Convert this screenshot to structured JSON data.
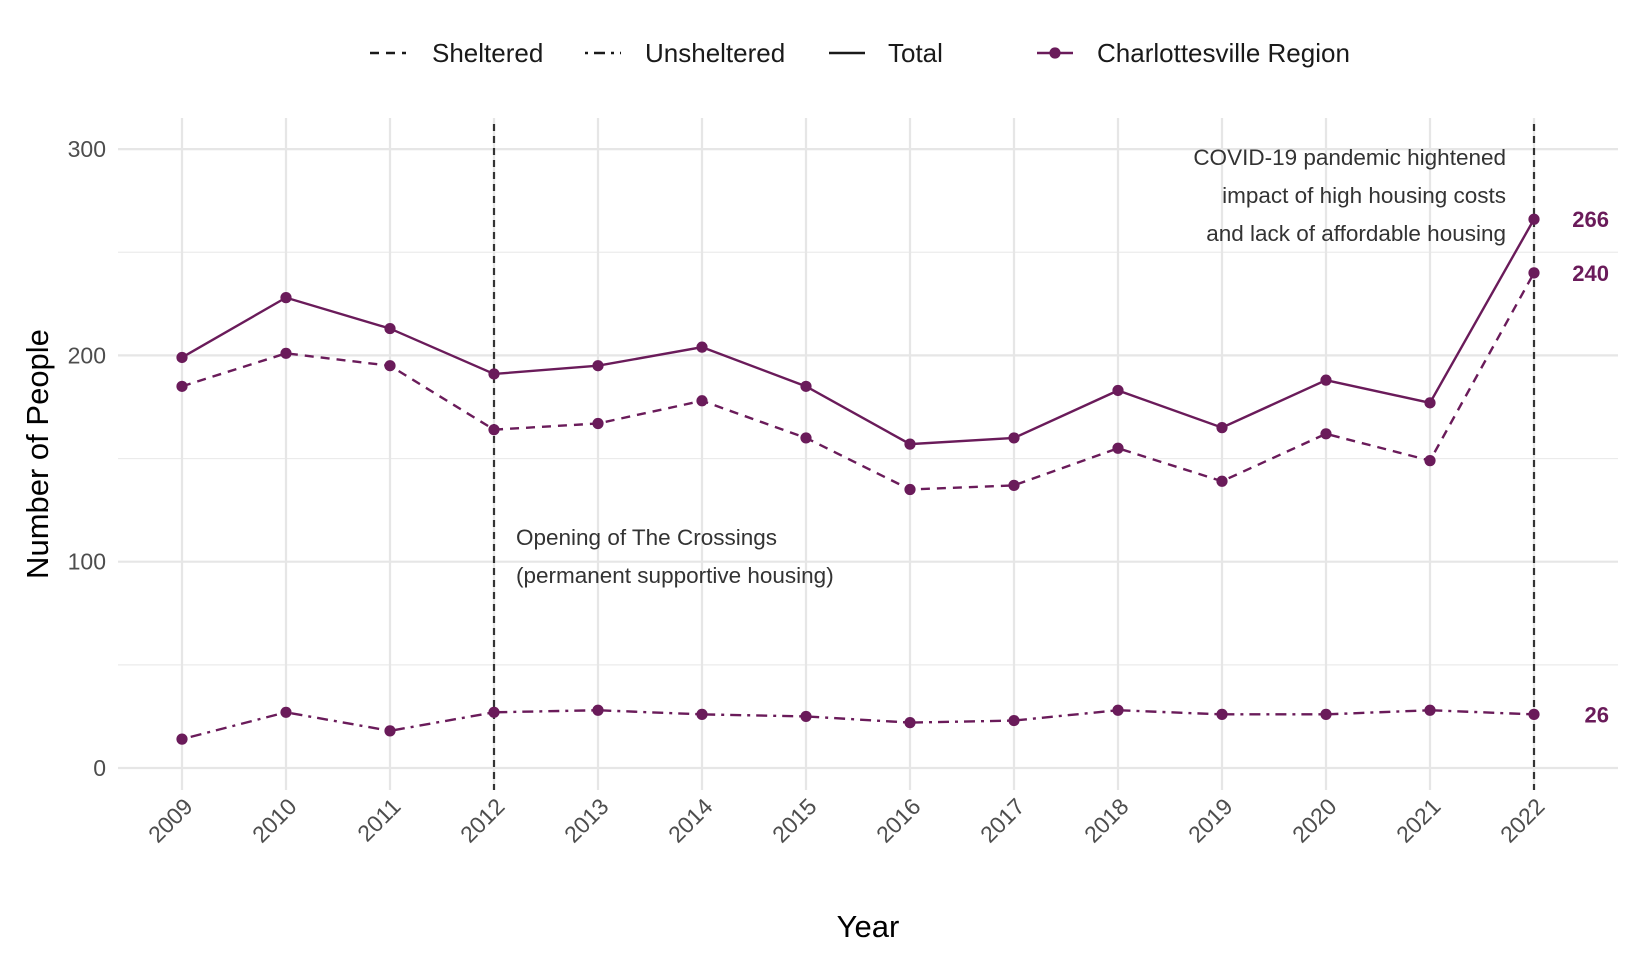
{
  "chart_data": {
    "type": "line",
    "title": "",
    "xlabel": "Year",
    "ylabel": "Number of People",
    "x": [
      "2009",
      "2010",
      "2011",
      "2012",
      "2013",
      "2014",
      "2015",
      "2016",
      "2017",
      "2018",
      "2019",
      "2020",
      "2021",
      "2022"
    ],
    "y_ticks": [
      "0",
      "100",
      "200",
      "300"
    ],
    "ylim": [
      -12,
      312
    ],
    "grid": true,
    "legend_position": "top",
    "legend": {
      "linetype_entries": [
        "Sheltered",
        "Unsheltered",
        "Total"
      ],
      "region_entry": "Charlottesville Region"
    },
    "region_color": "#6a1b5a",
    "series": [
      {
        "name": "Sheltered",
        "dash": "dashed",
        "values": [
          185,
          201,
          195,
          164,
          167,
          178,
          160,
          135,
          137,
          155,
          139,
          162,
          149,
          240
        ]
      },
      {
        "name": "Unsheltered",
        "dash": "dotdash",
        "values": [
          14,
          27,
          18,
          27,
          28,
          26,
          25,
          22,
          23,
          28,
          26,
          26,
          28,
          26
        ]
      },
      {
        "name": "Total",
        "dash": "solid",
        "values": [
          199,
          228,
          213,
          191,
          195,
          204,
          185,
          157,
          160,
          183,
          165,
          188,
          177,
          266
        ]
      }
    ],
    "end_labels": [
      {
        "series": "Total",
        "text": "266"
      },
      {
        "series": "Sheltered",
        "text": "240"
      },
      {
        "series": "Unsheltered",
        "text": "26"
      }
    ],
    "vlines": [
      "2012",
      "2022"
    ],
    "annotations": [
      {
        "x": "2012",
        "lines": [
          "Opening of The Crossings",
          "(permanent supportive housing)"
        ]
      },
      {
        "x": "2022",
        "lines": [
          "COVID-19 pandemic hightened",
          "impact of high housing costs",
          "and lack of affordable housing"
        ]
      }
    ]
  }
}
